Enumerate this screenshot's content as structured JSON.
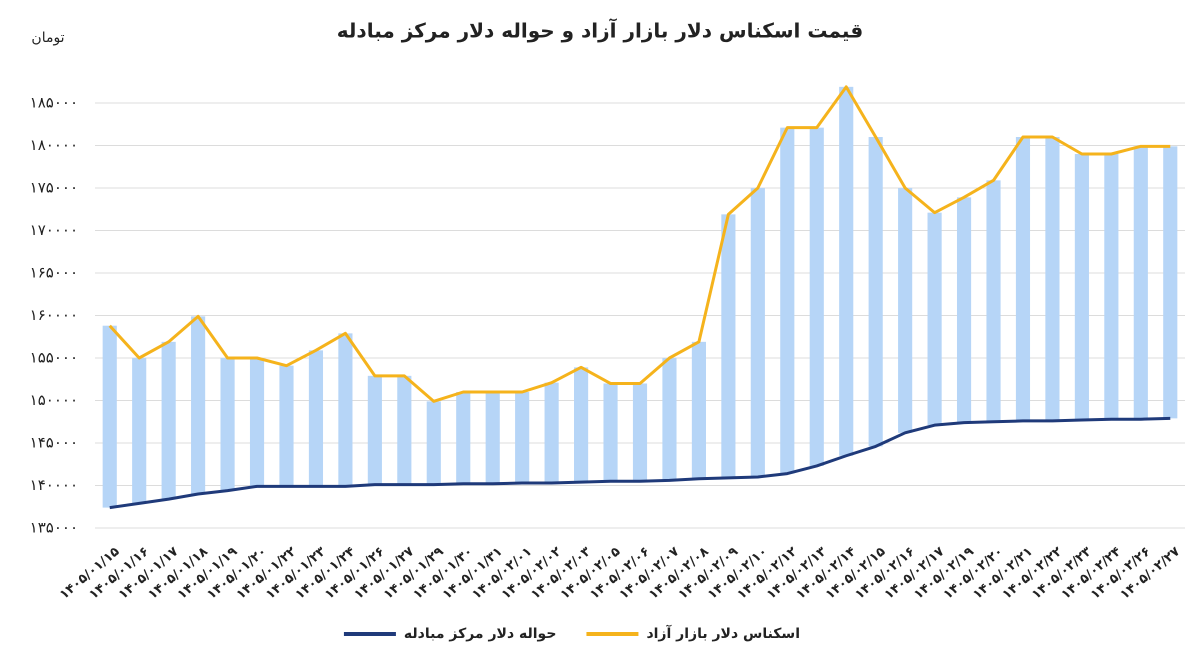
{
  "chart_data": {
    "type": "line",
    "title": "قیمت اسکناس دلار بازار آزاد و حواله دلار مرکز مبادله",
    "y_label": "تومان",
    "categories": [
      "۱۴۰۵/۰۱/۱۵",
      "۱۴۰۵/۰۱/۱۶",
      "۱۴۰۵/۰۱/۱۷",
      "۱۴۰۵/۰۱/۱۸",
      "۱۴۰۵/۰۱/۱۹",
      "۱۴۰۵/۰۱/۲۰",
      "۱۴۰۵/۰۱/۲۲",
      "۱۴۰۵/۰۱/۲۳",
      "۱۴۰۵/۰۱/۲۴",
      "۱۴۰۵/۰۱/۲۶",
      "۱۴۰۵/۰۱/۲۷",
      "۱۴۰۵/۰۱/۲۹",
      "۱۴۰۵/۰۱/۳۰",
      "۱۴۰۵/۰۱/۳۱",
      "۱۴۰۵/۰۲/۰۱",
      "۱۴۰۵/۰۲/۰۲",
      "۱۴۰۵/۰۲/۰۳",
      "۱۴۰۵/۰۲/۰۵",
      "۱۴۰۵/۰۲/۰۶",
      "۱۴۰۵/۰۲/۰۷",
      "۱۴۰۵/۰۲/۰۸",
      "۱۴۰۵/۰۲/۰۹",
      "۱۴۰۵/۰۲/۱۰",
      "۱۴۰۵/۰۲/۱۲",
      "۱۴۰۵/۰۲/۱۳",
      "۱۴۰۵/۰۲/۱۴",
      "۱۴۰۵/۰۲/۱۵",
      "۱۴۰۵/۰۲/۱۶",
      "۱۴۰۵/۰۲/۱۷",
      "۱۴۰۵/۰۲/۱۹",
      "۱۴۰۵/۰۲/۲۰",
      "۱۴۰۵/۰۲/۲۱",
      "۱۴۰۵/۰۲/۲۲",
      "۱۴۰۵/۰۲/۲۳",
      "۱۴۰۵/۰۲/۲۴",
      "۱۴۰۵/۰۲/۲۶",
      "۱۴۰۵/۰۲/۲۷"
    ],
    "series": [
      {
        "name": "اسکناس دلار بازار آزاد",
        "color": "#f5b31c",
        "values": [
          158800,
          155000,
          156900,
          159900,
          155000,
          155000,
          154100,
          155900,
          157900,
          152900,
          152900,
          149900,
          151000,
          151000,
          151000,
          152100,
          153900,
          152000,
          152000,
          155000,
          156900,
          171900,
          175000,
          182100,
          182100,
          186900,
          181000,
          175000,
          172100,
          173900,
          175900,
          181000,
          181000,
          179000,
          179000,
          179900,
          179900
        ]
      },
      {
        "name": "حواله دلار مرکز مبادله",
        "color": "#1f3a7a",
        "values": [
          137400,
          137900,
          138400,
          139000,
          139400,
          139900,
          139900,
          139900,
          139900,
          140100,
          140100,
          140100,
          140200,
          140200,
          140300,
          140300,
          140400,
          140500,
          140500,
          140600,
          140800,
          140900,
          141000,
          141400,
          142300,
          143500,
          144600,
          146200,
          147100,
          147400,
          147500,
          147600,
          147600,
          147700,
          147800,
          147800,
          147900
        ]
      }
    ],
    "bar_color": "#b6d5f7",
    "ylim": [
      135000,
      187500
    ],
    "yticks": [
      {
        "value": 135000,
        "label": "۱۳۵۰۰۰"
      },
      {
        "value": 140000,
        "label": "۱۴۰۰۰۰"
      },
      {
        "value": 145000,
        "label": "۱۴۵۰۰۰"
      },
      {
        "value": 150000,
        "label": "۱۵۰۰۰۰"
      },
      {
        "value": 155000,
        "label": "۱۵۵۰۰۰"
      },
      {
        "value": 160000,
        "label": "۱۶۰۰۰۰"
      },
      {
        "value": 165000,
        "label": "۱۶۵۰۰۰"
      },
      {
        "value": 170000,
        "label": "۱۷۰۰۰۰"
      },
      {
        "value": 175000,
        "label": "۱۷۵۰۰۰"
      },
      {
        "value": 180000,
        "label": "۱۸۰۰۰۰"
      },
      {
        "value": 185000,
        "label": "۱۸۵۰۰۰"
      }
    ],
    "grid": true,
    "legend": "bottom"
  }
}
